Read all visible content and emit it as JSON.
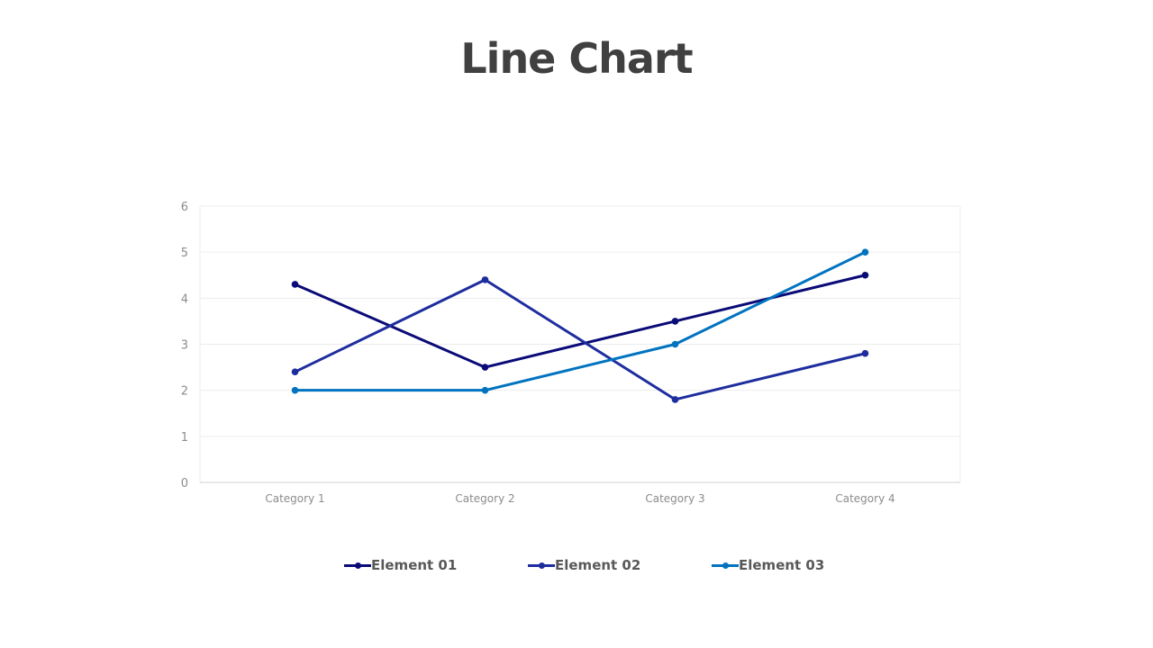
{
  "chart_data": {
    "type": "line",
    "title": "Line Chart",
    "categories": [
      "Category 1",
      "Category 2",
      "Category 3",
      "Category 4"
    ],
    "ylim": [
      0,
      6
    ],
    "yticks": [
      0,
      1,
      2,
      3,
      4,
      5,
      6
    ],
    "grid": true,
    "legend_position": "bottom",
    "series": [
      {
        "name": "Element 01",
        "color": "#0a0a78",
        "values": [
          4.3,
          2.5,
          3.5,
          4.5
        ]
      },
      {
        "name": "Element 02",
        "color": "#1e2d9e",
        "values": [
          2.4,
          4.4,
          1.8,
          2.8
        ]
      },
      {
        "name": "Element 03",
        "color": "#0073c0",
        "values": [
          2.0,
          2.0,
          3.0,
          5.0
        ]
      }
    ]
  }
}
